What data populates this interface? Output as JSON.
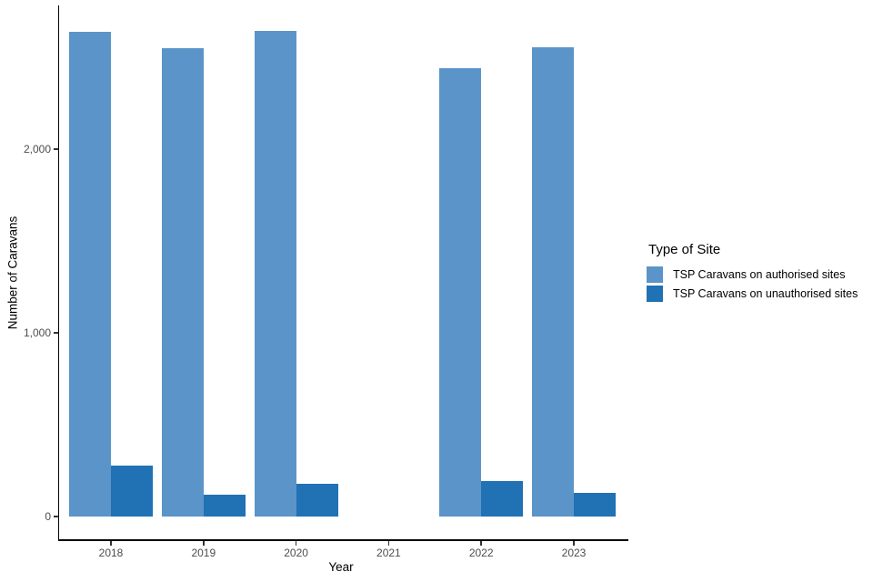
{
  "chart_data": {
    "type": "bar",
    "title": "",
    "xlabel": "Year",
    "ylabel": "Number of Caravans",
    "categories": [
      "2018",
      "2019",
      "2020",
      "2021",
      "2022",
      "2023"
    ],
    "series": [
      {
        "name": "TSP Caravans on authorised sites",
        "color": "#5B94C8",
        "values": [
          2640,
          2550,
          2645,
          null,
          2440,
          2555
        ]
      },
      {
        "name": "TSP Caravans on unauthorised sites",
        "color": "#2171B5",
        "values": [
          277,
          120,
          178,
          null,
          193,
          129
        ]
      }
    ],
    "y_ticks": [
      {
        "value": 0,
        "label": "0"
      },
      {
        "value": 1000,
        "label": "1,000"
      },
      {
        "value": 2000,
        "label": "2,000"
      }
    ],
    "ylim": [
      0,
      2780
    ],
    "grid": false,
    "background": "#FFFFFF",
    "legend": {
      "title": "Type of Site",
      "position": "right"
    }
  },
  "colors": {
    "axis_line": "#000000",
    "tick_text": "#4D4D4D",
    "title_text": "#000000"
  }
}
